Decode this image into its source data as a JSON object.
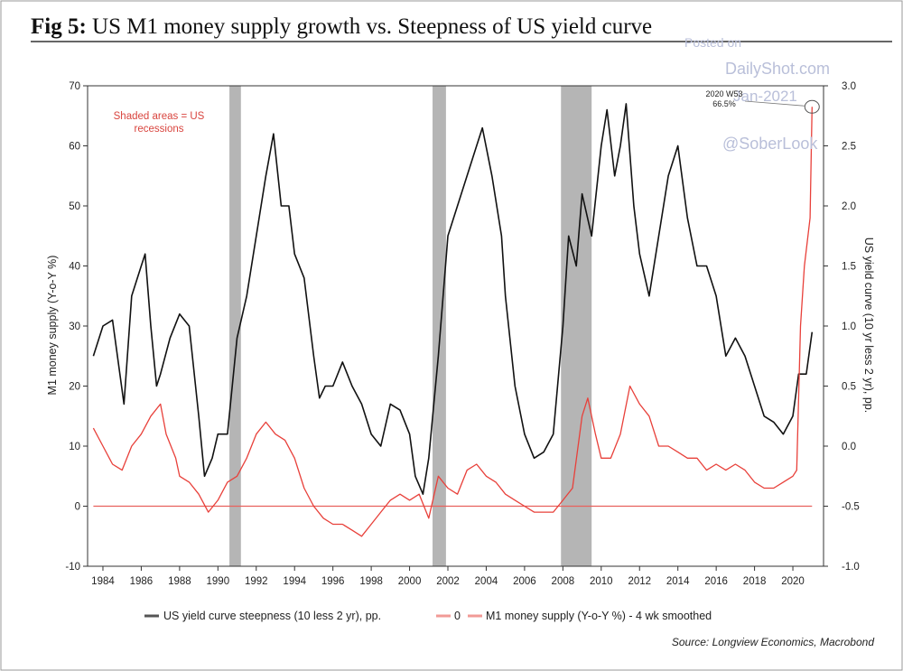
{
  "header": {
    "fig_label": "Fig 5:",
    "title": "US M1 money supply growth vs. Steepness of US yield curve"
  },
  "watermark": {
    "line1": "Posted on",
    "line2": "DailyShot.com",
    "line3": "Jan-2021",
    "line4": "@SoberLook"
  },
  "chart_data": {
    "type": "line",
    "title": "US M1 money supply growth vs. Steepness of US yield curve",
    "xlabel": "",
    "ylabel_left": "M1 money supply (Y-o-Y %)",
    "ylabel_right": "US yield curve (10 yr less 2 yr), pp.",
    "xlim": [
      1983.2,
      2021.6
    ],
    "ylim_left": [
      -10,
      70
    ],
    "ylim_right": [
      -1.0,
      3.0
    ],
    "x_ticks": [
      "1984",
      "1986",
      "1988",
      "1990",
      "1992",
      "1994",
      "1996",
      "1998",
      "2000",
      "2002",
      "2004",
      "2006",
      "2008",
      "2010",
      "2012",
      "2014",
      "2016",
      "2018",
      "2020"
    ],
    "y_ticks_left": [
      "70",
      "60",
      "50",
      "40",
      "30",
      "20",
      "10",
      "0",
      "-10"
    ],
    "y_ticks_right": [
      "3.0",
      "2.5",
      "2.0",
      "1.5",
      "1.0",
      "0.5",
      "0.0",
      "-0.5",
      "-1.0"
    ],
    "grid": false,
    "legend_position": "bottom",
    "annotation_shading": "Shaded areas = US recessions",
    "annotation_point": {
      "label1": "2020 W53",
      "label2": "66.5%",
      "x": 2021.0,
      "y": 66.5
    },
    "source": "Source: Longview Economics, Macrobond",
    "recessions": [
      [
        1990.6,
        1991.2
      ],
      [
        2001.2,
        2001.9
      ],
      [
        2007.9,
        2009.5
      ]
    ],
    "series": [
      {
        "name": "US yield curve steepness (10 less 2 yr), pp.",
        "axis": "right",
        "color": "#111111",
        "x": [
          1983.5,
          1984,
          1984.5,
          1985.1,
          1985.5,
          1986,
          1986.2,
          1986.5,
          1986.8,
          1987,
          1987.5,
          1988,
          1988.5,
          1989,
          1989.3,
          1989.7,
          1990,
          1990.5,
          1991,
          1991.5,
          1992,
          1992.5,
          1992.9,
          1993.3,
          1993.7,
          1994,
          1994.5,
          1995,
          1995.3,
          1995.6,
          1996,
          1996.5,
          1997,
          1997.5,
          1998,
          1998.5,
          1999,
          1999.5,
          2000,
          2000.3,
          2000.7,
          2001,
          2001.5,
          2002,
          2002.5,
          2003,
          2003.5,
          2003.8,
          2004.3,
          2004.8,
          2005,
          2005.5,
          2006,
          2006.5,
          2007,
          2007.5,
          2008,
          2008.3,
          2008.7,
          2009,
          2009.5,
          2010,
          2010.3,
          2010.7,
          2011,
          2011.3,
          2011.7,
          2012,
          2012.5,
          2013,
          2013.5,
          2014,
          2014.5,
          2015,
          2015.5,
          2016,
          2016.5,
          2017,
          2017.5,
          2018,
          2018.5,
          2019,
          2019.5,
          2020,
          2020.3,
          2020.7,
          2021
        ],
        "values": [
          0.75,
          1.0,
          1.05,
          0.35,
          1.25,
          1.5,
          1.6,
          1.0,
          0.5,
          0.6,
          0.9,
          1.1,
          1.0,
          0.25,
          -0.25,
          -0.1,
          0.1,
          0.1,
          0.9,
          1.25,
          1.75,
          2.25,
          2.6,
          2.0,
          2.0,
          1.6,
          1.4,
          0.75,
          0.4,
          0.5,
          0.5,
          0.7,
          0.5,
          0.35,
          0.1,
          0.0,
          0.35,
          0.3,
          0.1,
          -0.25,
          -0.4,
          -0.1,
          0.75,
          1.75,
          2.0,
          2.25,
          2.5,
          2.65,
          2.25,
          1.75,
          1.25,
          0.5,
          0.1,
          -0.1,
          -0.05,
          0.1,
          1.0,
          1.75,
          1.5,
          2.1,
          1.75,
          2.5,
          2.8,
          2.25,
          2.5,
          2.85,
          2.0,
          1.6,
          1.25,
          1.75,
          2.25,
          2.5,
          1.9,
          1.5,
          1.5,
          1.25,
          0.75,
          0.9,
          0.75,
          0.5,
          0.25,
          0.2,
          0.1,
          0.25,
          0.6,
          0.6,
          0.95
        ]
      },
      {
        "name": "0",
        "axis": "left",
        "color": "#e8615c",
        "x": [
          1983.5,
          2021
        ],
        "values": [
          0,
          0
        ]
      },
      {
        "name": "M1 money supply (Y-o-Y %) - 4 wk smoothed",
        "axis": "left",
        "color": "#e8403a",
        "x": [
          1983.5,
          1984,
          1984.5,
          1985,
          1985.5,
          1986,
          1986.5,
          1987,
          1987.3,
          1987.8,
          1988,
          1988.5,
          1989,
          1989.5,
          1990,
          1990.5,
          1991,
          1991.5,
          1992,
          1992.5,
          1993,
          1993.5,
          1994,
          1994.5,
          1995,
          1995.5,
          1996,
          1996.5,
          1997,
          1997.5,
          1998,
          1998.5,
          1999,
          1999.5,
          2000,
          2000.5,
          2001,
          2001.5,
          2002,
          2002.5,
          2003,
          2003.5,
          2004,
          2004.5,
          2005,
          2005.5,
          2006,
          2006.5,
          2007,
          2007.5,
          2008,
          2008.5,
          2009,
          2009.3,
          2009.7,
          2010,
          2010.5,
          2011,
          2011.5,
          2012,
          2012.5,
          2013,
          2013.5,
          2014,
          2014.5,
          2015,
          2015.5,
          2016,
          2016.5,
          2017,
          2017.5,
          2018,
          2018.5,
          2019,
          2019.5,
          2020,
          2020.2,
          2020.4,
          2020.6,
          2020.9,
          2021
        ],
        "values": [
          13,
          10,
          7,
          6,
          10,
          12,
          15,
          17,
          12,
          8,
          5,
          4,
          2,
          -1,
          1,
          4,
          5,
          8,
          12,
          14,
          12,
          11,
          8,
          3,
          0,
          -2,
          -3,
          -3,
          -4,
          -5,
          -3,
          -1,
          1,
          2,
          1,
          2,
          -2,
          5,
          3,
          2,
          6,
          7,
          5,
          4,
          2,
          1,
          0,
          -1,
          -1,
          -1,
          1,
          3,
          15,
          18,
          12,
          8,
          8,
          12,
          20,
          17,
          15,
          10,
          10,
          9,
          8,
          8,
          6,
          7,
          6,
          7,
          6,
          4,
          3,
          3,
          4,
          5,
          6,
          30,
          40,
          48,
          66.5
        ]
      }
    ]
  }
}
